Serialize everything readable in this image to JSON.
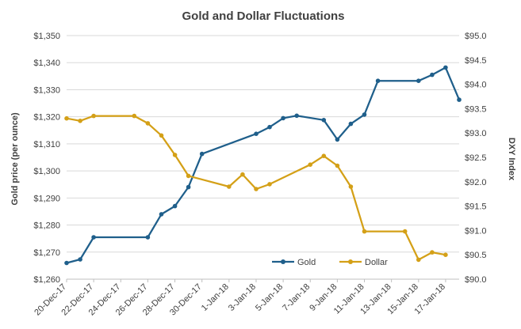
{
  "chart_data": {
    "type": "line",
    "title": "Gold and Dollar Fluctuations",
    "ylabel": "Gold price (per ounce)",
    "y2label": "DXY Index",
    "xlabel": "",
    "x_tick_labels": [
      "20-Dec-17",
      "22-Dec-17",
      "24-Dec-17",
      "26-Dec-17",
      "28-Dec-17",
      "30-Dec-17",
      "1-Jan-18",
      "3-Jan-18",
      "5-Jan-18",
      "7-Jan-18",
      "9-Jan-18",
      "11-Jan-18",
      "13-Jan-18",
      "15-Jan-18",
      "17-Jan-18"
    ],
    "xlim": [
      "2017-12-20",
      "2018-01-18"
    ],
    "ylim": [
      1260,
      1350
    ],
    "y_ticks": [
      1260,
      1270,
      1280,
      1290,
      1300,
      1310,
      1320,
      1330,
      1340,
      1350
    ],
    "y_tick_labels": [
      "$1,260",
      "$1,270",
      "$1,280",
      "$1,290",
      "$1,300",
      "$1,310",
      "$1,320",
      "$1,330",
      "$1,340",
      "$1,350"
    ],
    "y2lim": [
      90.0,
      95.0
    ],
    "y2_ticks": [
      90.0,
      90.5,
      91.0,
      91.5,
      92.0,
      92.5,
      93.0,
      93.5,
      94.0,
      94.5,
      95.0
    ],
    "y2_tick_labels": [
      "$90.0",
      "$90.5",
      "$91.0",
      "$91.5",
      "$92.0",
      "$92.5",
      "$93.0",
      "$93.5",
      "$94.0",
      "$94.5",
      "$95.0"
    ],
    "grid": true,
    "legend_position": "bottom-right",
    "series": [
      {
        "name": "Gold",
        "axis": "left",
        "color": "#1f5f8b",
        "points": [
          [
            "2017-12-20",
            1266
          ],
          [
            "2017-12-21",
            1267.3
          ],
          [
            "2017-12-22",
            1275.5
          ],
          [
            "2017-12-26",
            1275.5
          ],
          [
            "2017-12-27",
            1284
          ],
          [
            "2017-12-28",
            1287
          ],
          [
            "2017-12-29",
            1294
          ],
          [
            "2017-12-30",
            1306.3
          ],
          [
            "2018-01-03",
            1313.7
          ],
          [
            "2018-01-04",
            1316.2
          ],
          [
            "2018-01-05",
            1319.5
          ],
          [
            "2018-01-06",
            1320.4
          ],
          [
            "2018-01-08",
            1318.8
          ],
          [
            "2018-01-09",
            1311.6
          ],
          [
            "2018-01-10",
            1317.4
          ],
          [
            "2018-01-11",
            1320.8
          ],
          [
            "2018-01-12",
            1333.3
          ],
          [
            "2018-01-15",
            1333.3
          ],
          [
            "2018-01-16",
            1335.5
          ],
          [
            "2018-01-17",
            1338.2
          ],
          [
            "2018-01-18",
            1326.3
          ]
        ]
      },
      {
        "name": "Dollar",
        "axis": "right",
        "color": "#d4a017",
        "points": [
          [
            "2017-12-20",
            93.3
          ],
          [
            "2017-12-21",
            93.25
          ],
          [
            "2017-12-22",
            93.35
          ],
          [
            "2017-12-25",
            93.35
          ],
          [
            "2017-12-26",
            93.2
          ],
          [
            "2017-12-27",
            92.95
          ],
          [
            "2017-12-28",
            92.55
          ],
          [
            "2017-12-29",
            92.12
          ],
          [
            "2018-01-01",
            91.9
          ],
          [
            "2018-01-02",
            92.15
          ],
          [
            "2018-01-03",
            91.85
          ],
          [
            "2018-01-04",
            91.95
          ],
          [
            "2018-01-07",
            92.35
          ],
          [
            "2018-01-08",
            92.53
          ],
          [
            "2018-01-09",
            92.33
          ],
          [
            "2018-01-10",
            91.9
          ],
          [
            "2018-01-11",
            90.98
          ],
          [
            "2018-01-14",
            90.98
          ],
          [
            "2018-01-15",
            90.4
          ],
          [
            "2018-01-16",
            90.55
          ],
          [
            "2018-01-17",
            90.5
          ]
        ]
      }
    ]
  }
}
